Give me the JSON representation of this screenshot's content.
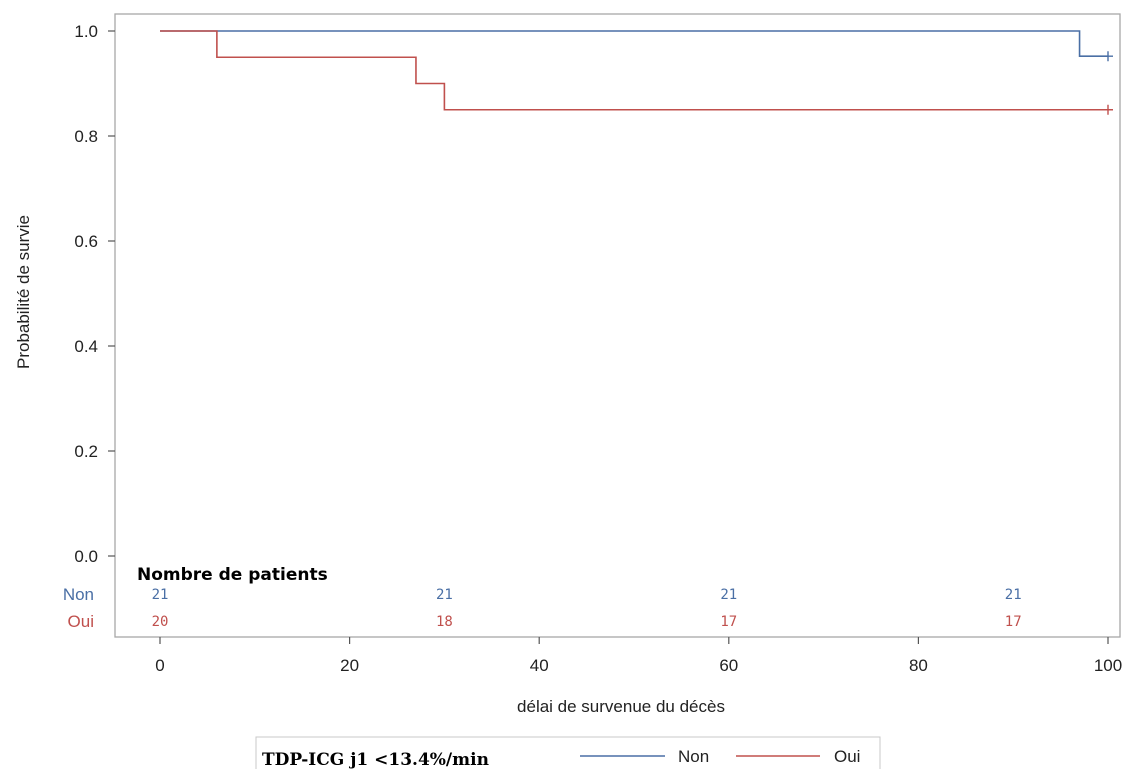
{
  "chart_data": {
    "type": "line",
    "subtype": "kaplan-meier step",
    "title": "",
    "xlabel": "délai de survenue du décès",
    "ylabel": "Probabilité de survie",
    "xlim": [
      0,
      100
    ],
    "ylim": [
      0,
      1
    ],
    "x_ticks": [
      0,
      20,
      40,
      60,
      80,
      100
    ],
    "x_tick_labels": [
      "0",
      "20",
      "40",
      "60",
      "80",
      "100"
    ],
    "y_ticks": [
      0,
      0.2,
      0.4,
      0.6,
      0.8,
      1.0
    ],
    "y_tick_labels": [
      "0.0",
      "0.2",
      "0.4",
      "0.6",
      "0.8",
      "1.0"
    ],
    "grid": false,
    "series": [
      {
        "name": "Non",
        "color": "#4a6fa5",
        "steps": [
          [
            0,
            1.0
          ],
          [
            97,
            0.952
          ]
        ],
        "end_x": 100,
        "censor_marks": [
          [
            100,
            0.952
          ]
        ]
      },
      {
        "name": "Oui",
        "color": "#c0504d",
        "steps": [
          [
            0,
            1.0
          ],
          [
            6,
            0.95
          ],
          [
            27,
            0.9
          ],
          [
            30,
            0.85
          ]
        ],
        "end_x": 100,
        "censor_marks": [
          [
            100,
            0.85
          ]
        ]
      }
    ],
    "risk_table": {
      "title": "Nombre de patients",
      "times": [
        0,
        30,
        60,
        90
      ],
      "rows": [
        {
          "label": "Non",
          "color": "#4a6fa5",
          "counts": [
            "21",
            "21",
            "21",
            "21"
          ]
        },
        {
          "label": "Oui",
          "color": "#c0504d",
          "counts": [
            "20",
            "18",
            "17",
            "17"
          ]
        }
      ]
    },
    "legend": {
      "title": "TDP-ICG j1 <13.4%/min",
      "placement": "bottom-center",
      "entries": [
        {
          "label": "Non",
          "color": "#4a6fa5"
        },
        {
          "label": "Oui",
          "color": "#c0504d"
        }
      ]
    }
  }
}
